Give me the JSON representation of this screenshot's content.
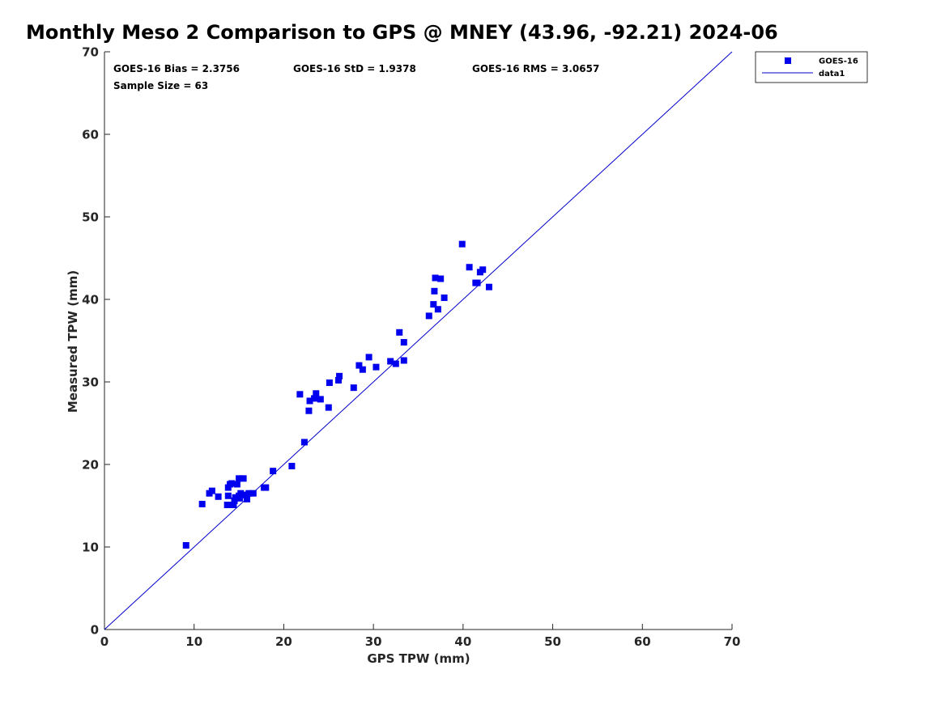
{
  "title": "Monthly Meso 2 Comparison to GPS @ MNEY (43.96, -92.21) 2024-06",
  "stats": {
    "bias": "GOES-16 Bias = 2.3756",
    "std": "GOES-16 StD = 1.9378",
    "rms": "GOES-16 RMS = 3.0657",
    "sample": "Sample Size = 63"
  },
  "legend": {
    "placement": "top-right, outside axes",
    "entries": [
      "GOES-16",
      "data1"
    ]
  },
  "colors": {
    "marker": "#0000ee",
    "line": "#0000cc",
    "axis": "#262626"
  },
  "chart_data": {
    "type": "scatter",
    "title": "Monthly Meso 2 Comparison to GPS @ MNEY (43.96, -92.21) 2024-06",
    "xlabel": "GPS TPW (mm)",
    "ylabel": "Measured TPW (mm)",
    "xlim": [
      0,
      70
    ],
    "ylim": [
      0,
      70
    ],
    "xticks": [
      "0",
      "10",
      "20",
      "30",
      "40",
      "50",
      "60",
      "70"
    ],
    "yticks": [
      "0",
      "10",
      "20",
      "30",
      "40",
      "50",
      "60",
      "70"
    ],
    "grid": false,
    "series": [
      {
        "name": "GOES-16",
        "marker": "square",
        "x": [
          9.1,
          10.9,
          11.7,
          12.0,
          12.7,
          13.7,
          13.8,
          13.8,
          14.0,
          14.2,
          14.4,
          14.5,
          14.6,
          14.8,
          15.0,
          15.0,
          15.1,
          15.2,
          15.4,
          15.5,
          15.7,
          15.9,
          16.1,
          16.6,
          17.8,
          18.0,
          18.8,
          20.9,
          21.8,
          22.3,
          22.8,
          22.9,
          23.4,
          23.6,
          24.1,
          25.0,
          25.1,
          26.1,
          26.2,
          27.8,
          28.4,
          28.8,
          29.5,
          30.3,
          31.9,
          32.5,
          32.9,
          33.4,
          33.4,
          36.2,
          36.7,
          36.8,
          36.9,
          37.2,
          37.5,
          37.9,
          39.9,
          40.7,
          41.4,
          41.6,
          41.9,
          42.2,
          42.9
        ],
        "y": [
          10.2,
          15.2,
          16.5,
          16.8,
          16.1,
          15.1,
          16.2,
          17.2,
          17.6,
          17.7,
          15.1,
          15.6,
          16.0,
          17.6,
          18.3,
          16.2,
          15.9,
          16.5,
          16.3,
          18.3,
          16.3,
          15.8,
          16.5,
          16.5,
          17.2,
          17.2,
          19.2,
          19.8,
          28.5,
          22.7,
          26.5,
          27.7,
          28.0,
          28.6,
          27.9,
          26.9,
          29.9,
          30.2,
          30.7,
          29.3,
          32.0,
          31.5,
          33.0,
          31.8,
          32.5,
          32.2,
          36.0,
          32.6,
          34.8,
          38.0,
          39.4,
          41.0,
          42.6,
          38.8,
          42.5,
          40.2,
          46.7,
          43.9,
          42.0,
          42.0,
          43.3,
          43.6,
          41.5
        ]
      },
      {
        "name": "data1",
        "type": "line",
        "x": [
          0,
          70
        ],
        "y": [
          0,
          70
        ]
      }
    ]
  }
}
